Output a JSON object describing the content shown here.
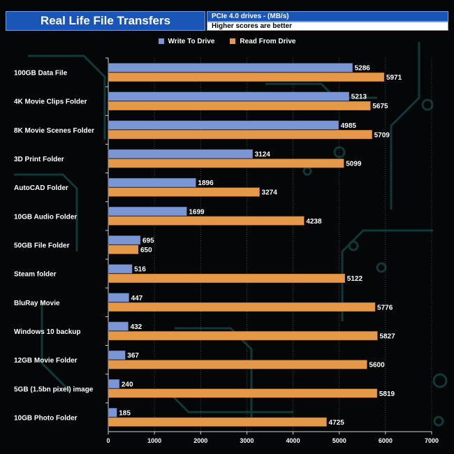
{
  "header": {
    "title": "Real Life File Transfers",
    "subtitle": "PCIe 4.0 drives - (MB/s)",
    "note": "Higher scores are better"
  },
  "colors": {
    "write": "#7b96d4",
    "read": "#e59848",
    "background": "#050607",
    "circuit": "#0e3a3a",
    "title_bg": "#1a56b8"
  },
  "chart_data": {
    "type": "bar",
    "orientation": "horizontal",
    "title": "Real Life File Transfers",
    "subtitle": "PCIe 4.0 drives - (MB/s)",
    "categories": [
      "100GB Data File",
      "4K Movie Clips Folder",
      "8K Movie Scenes Folder",
      "3D Print Folder",
      "AutoCAD Folder",
      "10GB Audio Folder",
      "50GB File Folder",
      "Steam folder",
      "BluRay Movie",
      "Windows 10 backup",
      "12GB Movie Folder",
      "5GB (1.5bn pixel) image",
      "10GB Photo Folder"
    ],
    "series": [
      {
        "name": "Write To  Drive",
        "values": [
          5286,
          5213,
          4985,
          3124,
          1896,
          1699,
          695,
          516,
          447,
          432,
          367,
          240,
          185
        ]
      },
      {
        "name": "Read From  Drive",
        "values": [
          5971,
          5675,
          5709,
          5099,
          3274,
          4238,
          650,
          5122,
          5776,
          5827,
          5600,
          5819,
          4725
        ]
      }
    ],
    "xlim": [
      0,
      7000
    ],
    "xticks": [
      0,
      1000,
      2000,
      3000,
      4000,
      5000,
      6000,
      7000
    ],
    "grid": true,
    "legend_position": "top-center"
  }
}
